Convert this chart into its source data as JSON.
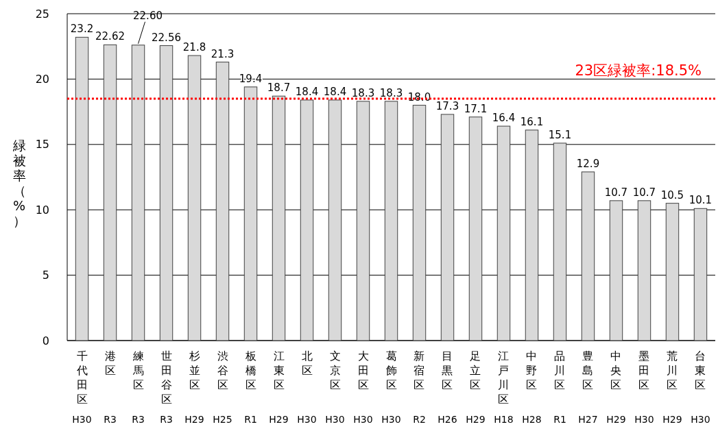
{
  "chart_data": {
    "type": "bar",
    "ylabel": "緑被率（%）",
    "categories": [
      "千代田区",
      "港区",
      "練馬区",
      "世田谷区",
      "杉並区",
      "渋谷区",
      "板橋区",
      "江東区",
      "北区",
      "文京区",
      "大田区",
      "葛飾区",
      "新宿区",
      "目黒区",
      "足立区",
      "江戸川区",
      "中野区",
      "品川区",
      "豊島区",
      "中央区",
      "墨田区",
      "荒川区",
      "台東区"
    ],
    "values": [
      23.2,
      22.62,
      22.6,
      22.56,
      21.8,
      21.3,
      19.4,
      18.7,
      18.4,
      18.4,
      18.3,
      18.3,
      18.0,
      17.3,
      17.1,
      16.4,
      16.1,
      15.1,
      12.9,
      10.7,
      10.7,
      10.5,
      10.1
    ],
    "value_labels": [
      "23.2",
      "22.62",
      "22.60",
      "22.56",
      "21.8",
      "21.3",
      "19.4",
      "18.7",
      "18.4",
      "18.4",
      "18.3",
      "18.3",
      "18.0",
      "17.3",
      "17.1",
      "16.4",
      "16.1",
      "15.1",
      "12.9",
      "10.7",
      "10.7",
      "10.5",
      "10.1"
    ],
    "color": "#d9d9d9",
    "ylim": [
      0,
      25
    ],
    "yticks": [
      0,
      5,
      10,
      15,
      20,
      25
    ],
    "grid": "y",
    "ref_lines": [
      {
        "axis": "y",
        "value": 18.5,
        "label": "23区緑被率:18.5%",
        "color": "#ff0000",
        "line_style": "dotted"
      }
    ],
    "annotations": [
      "H30",
      "R3",
      "R3",
      "R3",
      "H29",
      "H25",
      "R1",
      "H29",
      "H30",
      "H30",
      "H30",
      "H30",
      "R2",
      "H26",
      "H29",
      "H18",
      "H28",
      "R1",
      "H27",
      "H29",
      "H30",
      "H29",
      "H30"
    ]
  }
}
